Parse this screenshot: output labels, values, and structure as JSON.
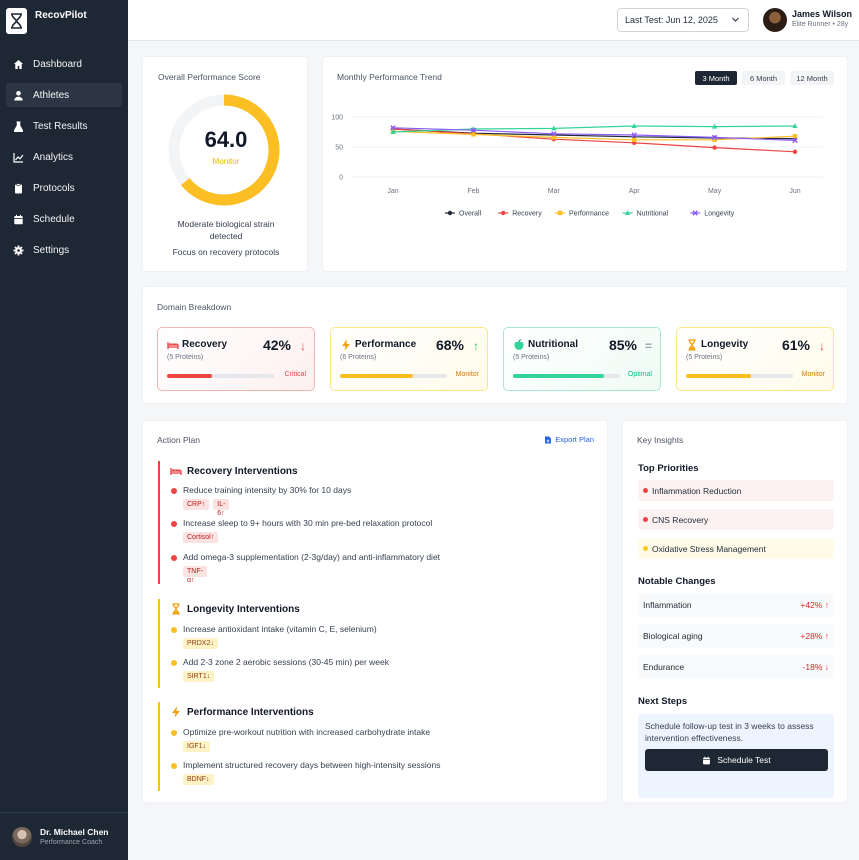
{
  "app": {
    "name": "RecovPilot"
  },
  "sidebar": {
    "items": [
      {
        "label": "Dashboard",
        "icon": "home-icon"
      },
      {
        "label": "Athletes",
        "icon": "user-icon"
      },
      {
        "label": "Test Results",
        "icon": "flask-icon"
      },
      {
        "label": "Analytics",
        "icon": "chart-line-icon"
      },
      {
        "label": "Protocols",
        "icon": "clipboard-icon"
      },
      {
        "label": "Schedule",
        "icon": "calendar-icon"
      },
      {
        "label": "Settings",
        "icon": "gear-icon"
      }
    ],
    "active": "Athletes",
    "footer": {
      "name": "Dr. Michael Chen",
      "role": "Performance Coach"
    }
  },
  "header": {
    "date_select": "Last Test: Jun 12, 2025",
    "user_name": "James Wilson",
    "user_sub": "Elite Runner • 28y"
  },
  "score": {
    "title": "Overall Performance Score",
    "value": "64.0",
    "fraction": 0.64,
    "label": "Monitor",
    "desc": "Moderate biological strain detected",
    "focus": "Focus on recovery protocols",
    "color": "#fbbf24"
  },
  "trend": {
    "title": "Monthly Performance Trend",
    "ranges": [
      "3 Month",
      "6 Month",
      "12 Month"
    ],
    "active_range": "3 Month"
  },
  "chart_data": {
    "type": "line",
    "title": "Monthly Performance Trend",
    "categories": [
      "Jan",
      "Feb",
      "Mar",
      "Apr",
      "May",
      "Jun"
    ],
    "ylim": [
      0,
      100
    ],
    "yticks": [
      0,
      50,
      100
    ],
    "legend_position": "bottom",
    "series": [
      {
        "name": "Overall",
        "color": "#1f2937",
        "marker": "circle",
        "values": [
          80,
          73,
          70,
          67,
          65,
          64
        ]
      },
      {
        "name": "Recovery",
        "color": "#ef4444",
        "marker": "circle",
        "values": [
          80,
          72,
          63,
          57,
          49,
          42
        ]
      },
      {
        "name": "Performance",
        "color": "#fbbf24",
        "marker": "square",
        "values": [
          76,
          71,
          66,
          62,
          62,
          68
        ]
      },
      {
        "name": "Nutritional",
        "color": "#34d399",
        "marker": "triangle",
        "values": [
          75,
          80,
          81,
          85,
          84,
          85
        ]
      },
      {
        "name": "Longevity",
        "color": "#8b5cf6",
        "marker": "x",
        "values": [
          82,
          78,
          72,
          70,
          66,
          61
        ]
      }
    ]
  },
  "domain": {
    "title": "Domain Breakdown",
    "tiles": [
      {
        "name": "Recovery",
        "icon": "bed-icon",
        "sub": "(5 Proteins)",
        "pct": "42%",
        "value": 0.42,
        "arrow": "↓",
        "status": "Critical",
        "color": "#ef4444",
        "bg": "#fdf0f0",
        "border": "#f5b5b5"
      },
      {
        "name": "Performance",
        "icon": "bolt-icon",
        "sub": "(6 Proteins)",
        "pct": "68%",
        "value": 0.68,
        "arrow": "↑",
        "status": "Monitor",
        "color": "#fbbf24",
        "bg": "#fffbeb",
        "border": "#fde68a"
      },
      {
        "name": "Nutritional",
        "icon": "apple-icon",
        "sub": "(5 Proteins)",
        "pct": "85%",
        "value": 0.85,
        "arrow": "=",
        "status": "Optimal",
        "color": "#34d399",
        "bg": "#effbf5",
        "border": "#a7e9cb"
      },
      {
        "name": "Longevity",
        "icon": "hourglass-icon",
        "sub": "(5 Proteins)",
        "pct": "61%",
        "value": 0.61,
        "arrow": "↓",
        "status": "Monitor",
        "color": "#fbbf24",
        "bg": "#fffbeb",
        "border": "#fde68a"
      }
    ],
    "arrow_colors": [
      "#ef4444",
      "#22c55e",
      "#9ca3af",
      "#ef4444"
    ]
  },
  "action_plan": {
    "title": "Action Plan",
    "export": "Export Plan",
    "sections": [
      {
        "title": "Recovery Interventions",
        "icon": "bed-icon",
        "color": "#ef4444",
        "items": [
          {
            "text": "Reduce training intensity by 30% for 10 days",
            "tags": [
              "CRP↑",
              "IL-6↑"
            ]
          },
          {
            "text": "Increase sleep to 9+ hours with 30 min pre-bed relaxation protocol",
            "tags": [
              "Cortisol↑"
            ]
          },
          {
            "text": "Add omega-3 supplementation (2-3g/day) and anti-inflammatory diet",
            "tags": [
              "TNF-α↑"
            ]
          }
        ]
      },
      {
        "title": "Longevity Interventions",
        "icon": "hourglass-icon",
        "color": "#fbbf24",
        "items": [
          {
            "text": "Increase antioxidant intake (vitamin C, E, selenium)",
            "tags": [
              "PRDX2↓"
            ]
          },
          {
            "text": "Add 2-3 zone 2 aerobic sessions (30-45 min) per week",
            "tags": [
              "SIRT1↓"
            ]
          }
        ]
      },
      {
        "title": "Performance Interventions",
        "icon": "bolt-icon",
        "color": "#fbbf24",
        "items": [
          {
            "text": "Optimize pre-workout nutrition with increased carbohydrate intake",
            "tags": [
              "IGF1↓"
            ]
          },
          {
            "text": "Implement structured recovery days between high-intensity sessions",
            "tags": [
              "BDNF↓"
            ]
          }
        ]
      }
    ]
  },
  "insights": {
    "title": "Key Insights",
    "top_priorities_title": "Top Priorities",
    "priorities": [
      {
        "label": "Inflammation Reduction",
        "color": "#ef4444",
        "bg": "#fdf2f2"
      },
      {
        "label": "CNS Recovery",
        "color": "#ef4444",
        "bg": "#fdf2f2"
      },
      {
        "label": "Oxidative Stress Management",
        "color": "#facc15",
        "bg": "#fefbe8"
      }
    ],
    "changes_title": "Notable Changes",
    "changes": [
      {
        "label": "Inflammation",
        "value": "+42%",
        "arrow": "↑"
      },
      {
        "label": "Biological aging",
        "value": "+28%",
        "arrow": "↑"
      },
      {
        "label": "Endurance",
        "value": "-18%",
        "arrow": "↓"
      }
    ],
    "next_title": "Next Steps",
    "next_text": "Schedule follow-up test in 3 weeks to assess intervention effectiveness.",
    "button": "Schedule Test"
  }
}
